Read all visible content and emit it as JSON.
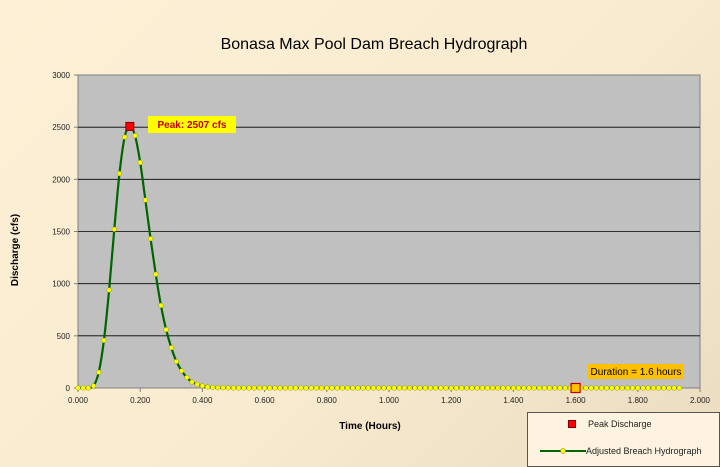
{
  "chart_data": {
    "type": "line",
    "title": "Bonasa Max Pool Dam Breach Hydrograph",
    "xlabel": "Time (Hours)",
    "ylabel": "Discharge (cfs)",
    "xlim": [
      0,
      2.0
    ],
    "ylim": [
      0,
      3000
    ],
    "x_ticks": [
      "0.000",
      "0.200",
      "0.400",
      "0.600",
      "0.800",
      "1.000",
      "1.200",
      "1.400",
      "1.600",
      "1.800",
      "2.000"
    ],
    "y_ticks": [
      "0",
      "500",
      "1000",
      "1500",
      "2000",
      "2500",
      "3000"
    ],
    "grid": true,
    "legend_position": "bottom-right",
    "series": [
      {
        "name": "Adjusted Breach Hydrograph",
        "color": "#006400",
        "marker_color": "#ffff00",
        "x_start": 0,
        "x_step": 0.016667,
        "values": [
          0,
          0,
          0,
          20,
          151,
          457,
          939,
          1521,
          2055,
          2405,
          2507,
          2418,
          2161,
          1801,
          1431,
          1090,
          791,
          559,
          386,
          254,
          164,
          100,
          58,
          35,
          20,
          10,
          5,
          3,
          2,
          1,
          0,
          0,
          0,
          0,
          0,
          0,
          0,
          0,
          0,
          0,
          0,
          0,
          0,
          0,
          0,
          0,
          0,
          0,
          0,
          0,
          0,
          0,
          0,
          0,
          0,
          0,
          0,
          0,
          0,
          0,
          0,
          0,
          0,
          0,
          0,
          0,
          0,
          0,
          0,
          0,
          0,
          0,
          0,
          0,
          0,
          0,
          0,
          0,
          0,
          0,
          0,
          0,
          0,
          0,
          0,
          0,
          0,
          0,
          0,
          0,
          0,
          0,
          0,
          0,
          0,
          0,
          0,
          0,
          0,
          0,
          0,
          0,
          0,
          0,
          0,
          0,
          0,
          0,
          0,
          0,
          0,
          0,
          0,
          0,
          0,
          0,
          0
        ]
      },
      {
        "name": "Peak Discharge",
        "color": "#ff0000",
        "points": [
          {
            "x": 0.1667,
            "y": 2507
          }
        ]
      }
    ],
    "duration_marker": {
      "x": 1.6,
      "y": 0,
      "color": "#ffc000"
    },
    "annotations": {
      "peak": "Peak: 2507 cfs",
      "duration": "Duration = 1.6 hours"
    }
  }
}
